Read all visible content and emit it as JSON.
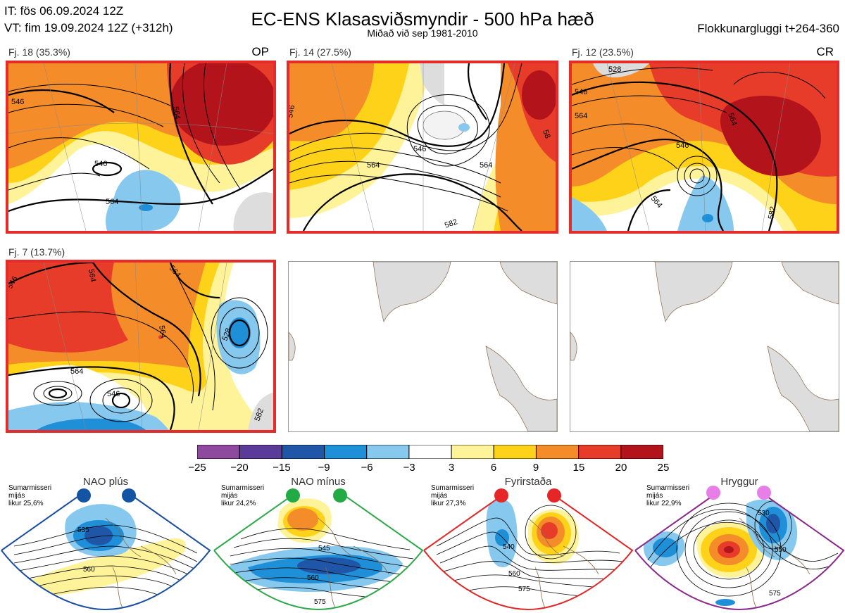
{
  "header": {
    "issue_time": "IT: fös 06.09.2024 12Z",
    "valid_time": "VT: fim 19.09.2024 12Z  (+312h)",
    "title": "EC-ENS Klasasviðsmyndir - 500 hPa hæð",
    "subtitle": "Miðað við sep 1981-2010",
    "window": "Flokkunargluggi t+264-360"
  },
  "panels": [
    {
      "label": "Fj. 18 (35.3%)",
      "tag": "OP",
      "contours": [
        "546",
        "546",
        "564",
        "564"
      ]
    },
    {
      "label": "Fj. 14 (27.5%)",
      "tag": "",
      "contours": [
        "546",
        "546",
        "564",
        "564",
        "58",
        "582"
      ]
    },
    {
      "label": "Fj. 12 (23.5%)",
      "tag": "CR",
      "contours": [
        "528",
        "546",
        "546",
        "564",
        "564",
        "564",
        "582"
      ]
    },
    {
      "label": "Fj. 7 (13.7%)",
      "tag": "",
      "contours": [
        "564",
        "546",
        "564",
        "564",
        "546",
        "564",
        "582",
        "528"
      ]
    }
  ],
  "colorbar": {
    "labels": [
      "−25",
      "−20",
      "−15",
      "−9",
      "−6",
      "−3",
      "3",
      "6",
      "9",
      "15",
      "20",
      "25"
    ],
    "colors": [
      "#8e4a9e",
      "#5a3b9a",
      "#1f56a8",
      "#1f8fd8",
      "#86c8ee",
      "#ffffff",
      "#fff39a",
      "#ffd21a",
      "#f58c2a",
      "#e83c2a",
      "#b3141c"
    ]
  },
  "regimes": [
    {
      "name": "NAO plús",
      "info": [
        "Sumarmisseri",
        "mijás",
        "likur 25,6%"
      ],
      "border": "#1a4ea0",
      "dot": "#1454a4",
      "contours": [
        "535",
        "560"
      ]
    },
    {
      "name": "NAO mínus",
      "info": [
        "Sumarmisseri",
        "mijás",
        "likur 24,2%"
      ],
      "border": "#2fa84a",
      "dot": "#22aa44",
      "contours": [
        "545",
        "560",
        "575"
      ]
    },
    {
      "name": "Fyrirstaða",
      "info": [
        "Sumarmisseri",
        "mijás",
        "likur 27,3%"
      ],
      "border": "#e02828",
      "dot": "#e62626",
      "contours": [
        "540",
        "560",
        "575"
      ]
    },
    {
      "name": "Hryggur",
      "info": [
        "Sumarmisseri",
        "mijás",
        "likur 22,9%"
      ],
      "border": "#8a2a8a",
      "dot": "#e87ee8",
      "contours": [
        "530",
        "550",
        "575"
      ]
    }
  ]
}
